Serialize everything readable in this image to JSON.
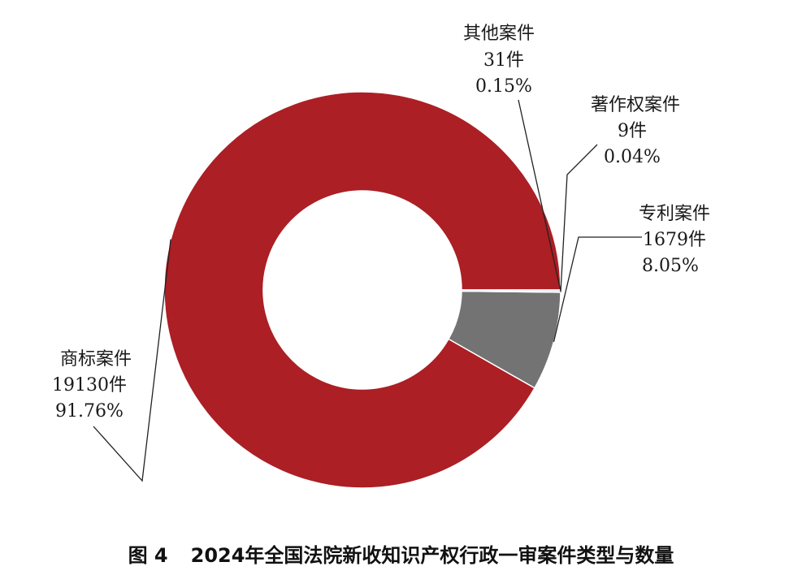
{
  "chart_data": {
    "type": "pie",
    "variant": "donut",
    "title": "2024年全国法院新收知识产权行政一审案件类型与数量",
    "figure_number": "图 4",
    "slices": [
      {
        "label": "商标案件",
        "count": 19130,
        "count_label": "19130件",
        "percent": 91.76,
        "percent_label": "91.76%",
        "color": "#ab1f25"
      },
      {
        "label": "专利案件",
        "count": 1679,
        "count_label": "1679件",
        "percent": 8.05,
        "percent_label": "8.05%",
        "color": "#737373"
      },
      {
        "label": "著作权案件",
        "count": 9,
        "count_label": "9件",
        "percent": 0.04,
        "percent_label": "0.04%",
        "color": "#1a1a1a"
      },
      {
        "label": "其他案件",
        "count": 31,
        "count_label": "31件",
        "percent": 0.15,
        "percent_label": "0.15%",
        "color": "#c8c8c8"
      }
    ],
    "start_angle_deg": 0,
    "direction": "counterclockwise",
    "slice_separator_color": "#ffffff",
    "legend": "none"
  }
}
